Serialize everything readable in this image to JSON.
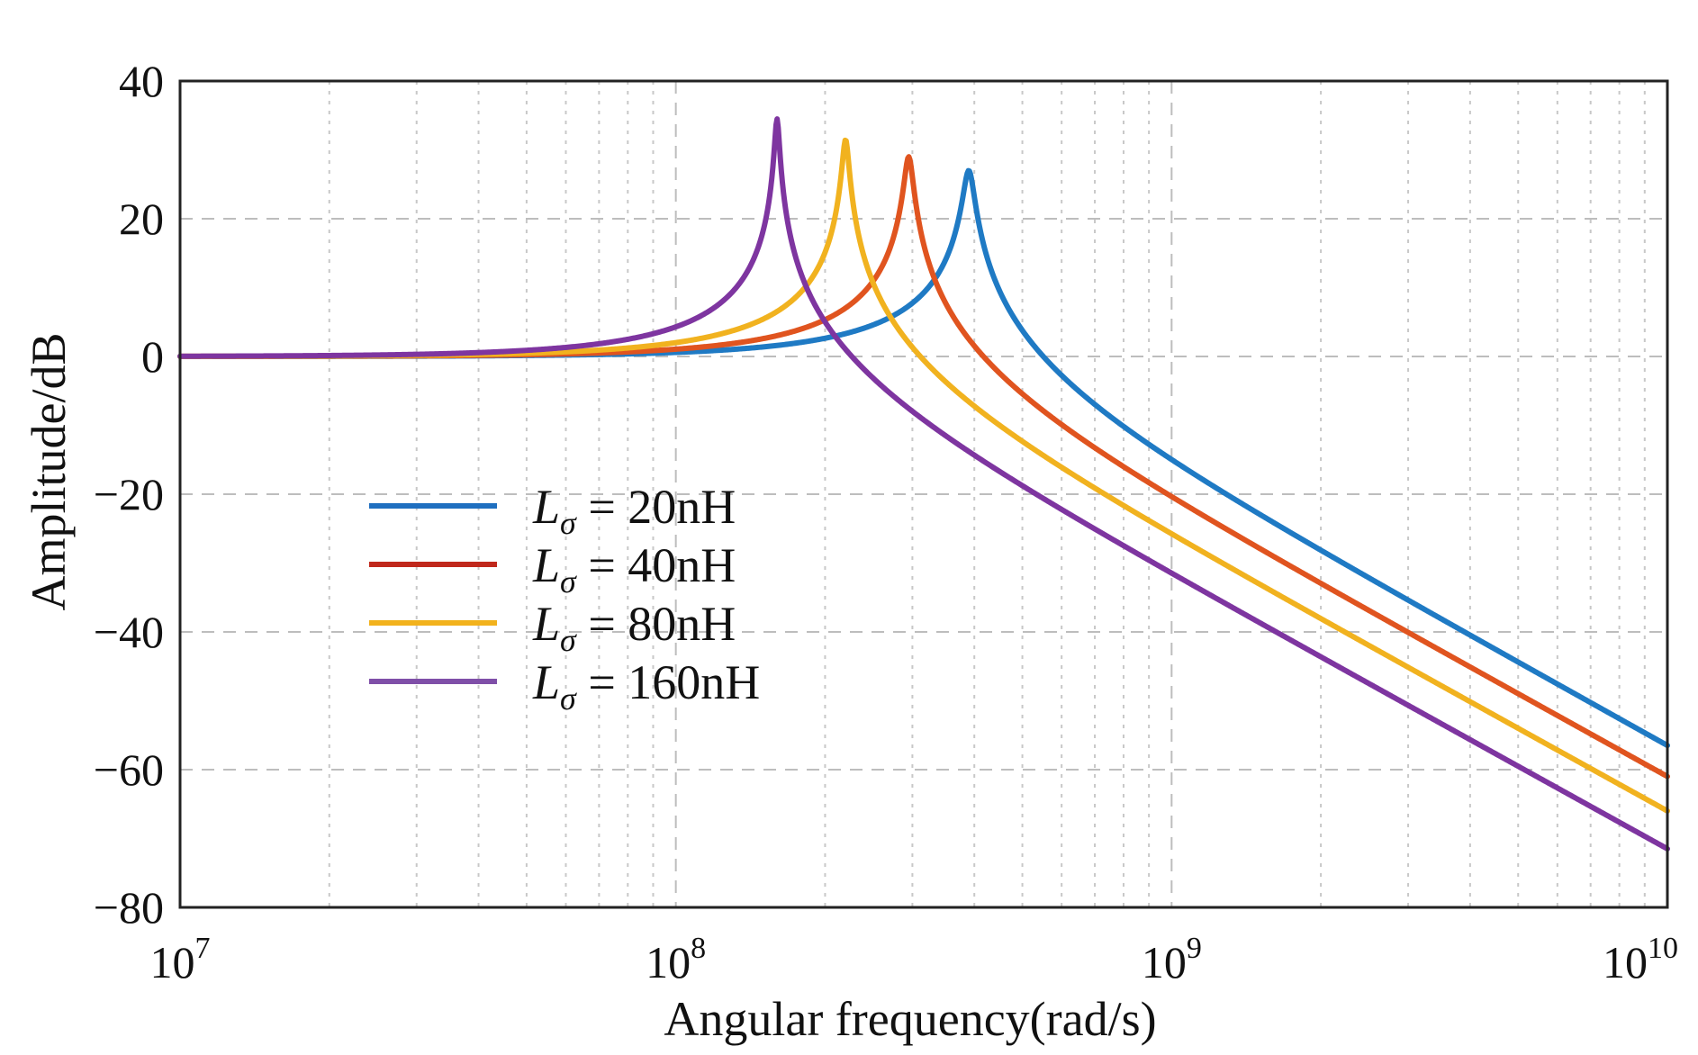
{
  "chart_data": {
    "type": "line",
    "title": "",
    "xlabel": "Angular  frequency(rad/s)",
    "ylabel": "Amplitude/dB",
    "xscale": "log",
    "xlim": [
      10000000,
      10000000000
    ],
    "ylim": [
      -80,
      40
    ],
    "grid": true,
    "legend_position": "center-left",
    "x_ticks": [
      {
        "base": "10",
        "exp": "7"
      },
      {
        "base": "10",
        "exp": "8"
      },
      {
        "base": "10",
        "exp": "9"
      },
      {
        "base": "10",
        "exp": "10"
      }
    ],
    "y_ticks": [
      "40",
      "20",
      "0",
      "−20",
      "−40",
      "−60",
      "−80"
    ],
    "y_tick_values": [
      40,
      20,
      0,
      -20,
      -40,
      -60,
      -80
    ],
    "series": [
      {
        "name": "Lσ = 20nH",
        "symbol": "L",
        "subscript": "σ",
        "value_text": " = 20nH",
        "legend_color": "#1f6fc0",
        "color": "#1f7ac4",
        "resonance_rad_s": 390000000,
        "peak_db": 27,
        "hf_db_at_1e10": -56.5
      },
      {
        "name": "Lσ = 40nH",
        "symbol": "L",
        "subscript": "σ",
        "value_text": " = 40nH",
        "legend_color": "#c0281c",
        "color": "#e0541f",
        "resonance_rad_s": 295000000,
        "peak_db": 29,
        "hf_db_at_1e10": -61
      },
      {
        "name": "Lσ = 80nH",
        "symbol": "L",
        "subscript": "σ",
        "value_text": " = 80nH",
        "legend_color": "#f2b21c",
        "color": "#f1b21f",
        "resonance_rad_s": 220000000,
        "peak_db": 31.5,
        "hf_db_at_1e10": -66
      },
      {
        "name": "Lσ = 160nH",
        "symbol": "L",
        "subscript": "σ",
        "value_text": " = 160nH",
        "legend_color": "#7f4fa8",
        "color": "#7e35a0",
        "resonance_rad_s": 160000000,
        "peak_db": 34.5,
        "hf_db_at_1e10": -71.5
      }
    ]
  }
}
